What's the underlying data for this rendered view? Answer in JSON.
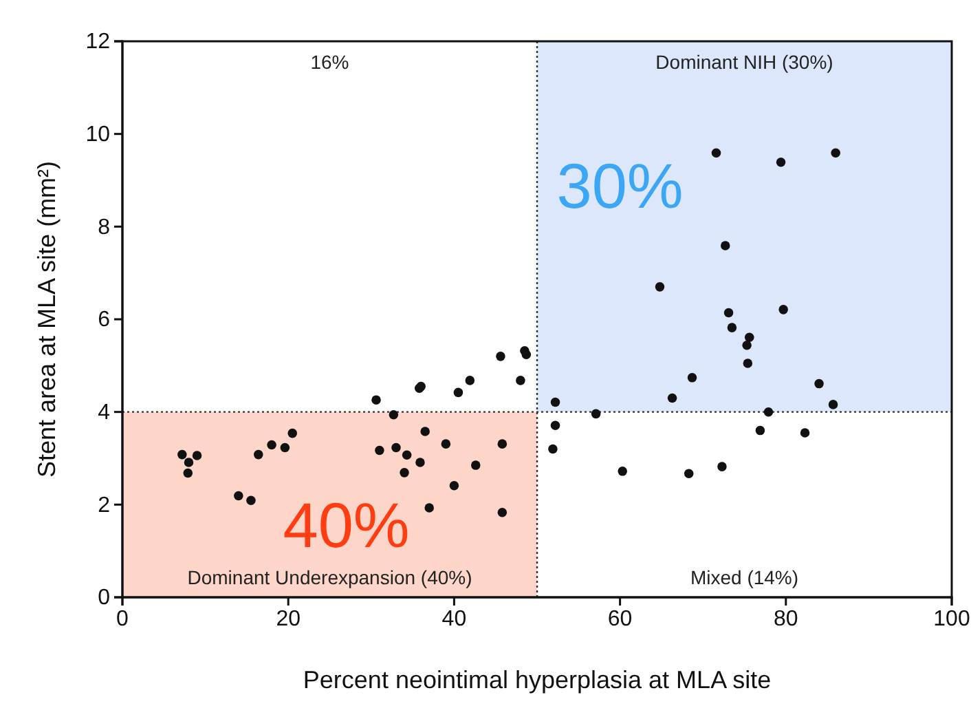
{
  "chart_data": {
    "type": "scatter",
    "xlabel": "Percent neointimal hyperplasia at MLA site",
    "ylabel": "Stent area at MLA site (mm²)",
    "xlim": [
      0,
      100
    ],
    "xticks": [
      0,
      20,
      40,
      60,
      80,
      100
    ],
    "ylim": [
      0,
      12
    ],
    "yticks": [
      0,
      2,
      4,
      6,
      8,
      10,
      12
    ],
    "grid": false,
    "marker": "circle",
    "x": [
      7.2,
      8.0,
      9.0,
      7.9,
      14.0,
      15.5,
      16.4,
      18.0,
      19.6,
      20.5,
      30.6,
      31.0,
      32.7,
      33.0,
      34.3,
      34.0,
      35.8,
      36.0,
      35.9,
      36.5,
      37.0,
      39.0,
      40.0,
      40.5,
      41.9,
      42.6,
      45.8,
      45.8,
      48.0,
      45.6,
      48.5,
      48.7,
      71.6,
      79.4,
      86.0,
      72.7,
      64.8,
      73.1,
      79.7,
      73.5,
      75.6,
      75.3,
      75.4,
      68.7,
      66.3,
      84.0,
      85.7,
      52.2,
      57.1,
      77.9,
      52.2,
      51.9,
      76.9,
      82.3,
      60.3,
      68.3,
      72.3
    ],
    "series": [
      {
        "color": "#111111",
        "values": [
          3.08,
          2.91,
          3.06,
          2.68,
          2.19,
          2.09,
          3.08,
          3.29,
          3.23,
          3.54,
          4.26,
          3.17,
          3.94,
          3.23,
          3.07,
          2.69,
          4.51,
          4.55,
          2.91,
          3.58,
          1.93,
          3.31,
          2.41,
          4.42,
          4.68,
          2.85,
          3.31,
          1.83,
          4.68,
          5.2,
          5.32,
          5.24,
          9.59,
          9.39,
          9.59,
          7.59,
          6.7,
          6.14,
          6.21,
          5.82,
          5.61,
          5.44,
          5.05,
          4.74,
          4.3,
          4.61,
          4.16,
          4.21,
          3.96,
          4.0,
          3.71,
          3.2,
          3.6,
          3.55,
          2.72,
          2.67,
          2.82
        ]
      }
    ],
    "bands": [
      {
        "axis": "x",
        "from": 0,
        "to": 50,
        "color": "#fdd5c9"
      },
      {
        "axis": "x",
        "from": 50,
        "to": 100,
        "color": "#dce7fb"
      }
    ],
    "ref_lines": [
      {
        "axis": "x",
        "value": 50,
        "line_style": "dotted"
      },
      {
        "axis": "y",
        "value": 4,
        "line_style": "dotted"
      }
    ],
    "annotations": [
      "16%",
      "Dominant NIH (30%)",
      "30%",
      "40%",
      "Dominant Underexpansion (40%)",
      "Mixed (14%)"
    ]
  }
}
